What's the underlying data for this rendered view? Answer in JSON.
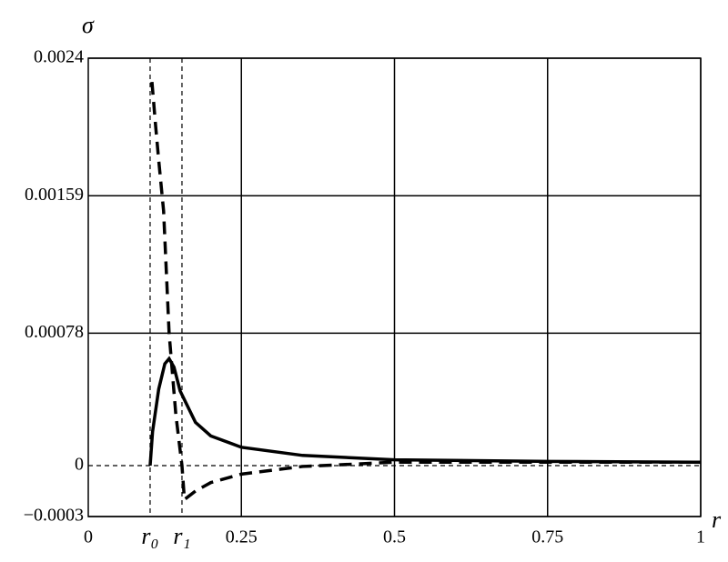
{
  "chart_data": {
    "type": "line",
    "ylabel": "σ",
    "xlabel": "r",
    "xlim": [
      0,
      1
    ],
    "ylim": [
      -0.0003,
      0.0024
    ],
    "xticks": [
      0,
      {
        "value": 0.101,
        "label": "r₀",
        "grid": "dashed"
      },
      {
        "value": 0.153,
        "label": "r₁",
        "grid": "dashed"
      },
      0.25,
      0.5,
      0.75,
      1
    ],
    "yticks": [
      {
        "value": -0.0003,
        "label": "−0.0003"
      },
      {
        "value": 0,
        "label": "0",
        "grid": "dashed"
      },
      0.00078,
      0.00159,
      0.0024
    ],
    "grid": true,
    "series": [
      {
        "style": "solid",
        "color": "#000000",
        "x": [
          0.101,
          0.105,
          0.115,
          0.125,
          0.132,
          0.14,
          0.15,
          0.175,
          0.2,
          0.25,
          0.35,
          0.5,
          0.75,
          1
        ],
        "values": [
          0,
          0.0002,
          0.00045,
          0.0006,
          0.00063,
          0.00058,
          0.00044,
          0.000255,
          0.000175,
          0.000108,
          6e-05,
          3.4e-05,
          2.5e-05,
          2e-05
        ]
      },
      {
        "style": "dashed",
        "color": "#000000",
        "x": [
          0.104,
          0.11,
          0.115,
          0.123,
          0.132,
          0.143,
          0.153,
          0.157,
          0.175,
          0.2,
          0.25,
          0.35,
          0.5,
          0.75,
          1
        ],
        "values": [
          0.00226,
          0.002,
          0.0018,
          0.0015,
          0.00078,
          0.0003,
          0,
          -0.0002,
          -0.00015,
          -0.0001,
          -5e-05,
          -5e-06,
          2e-05,
          2e-05,
          2e-05
        ]
      }
    ]
  }
}
